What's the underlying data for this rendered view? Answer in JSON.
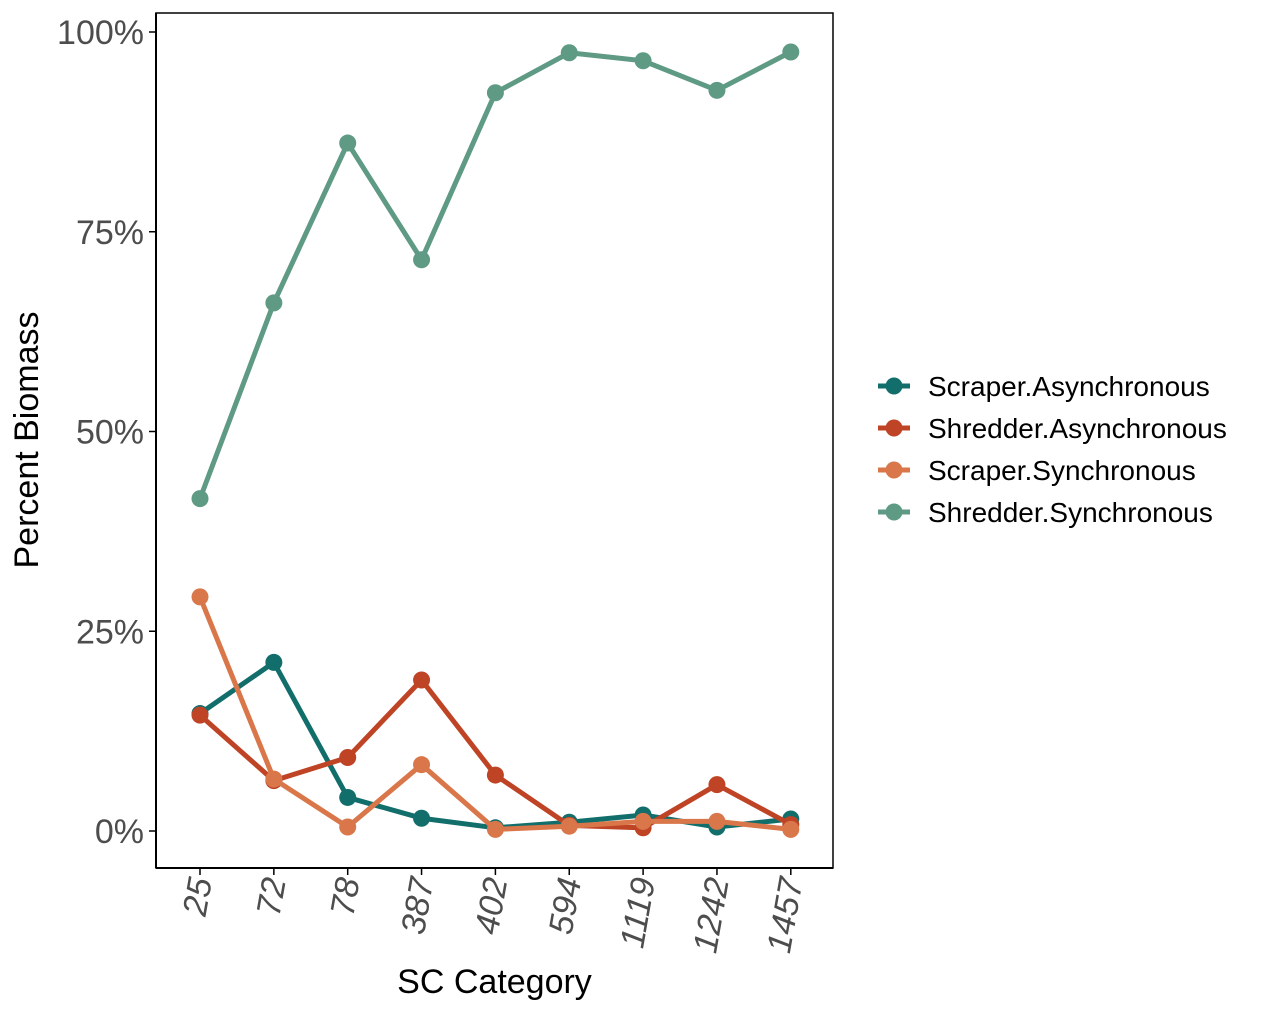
{
  "chart_data": {
    "type": "line",
    "categories": [
      "25",
      "72",
      "78",
      "387",
      "402",
      "594",
      "1119",
      "1242",
      "1457"
    ],
    "xlabel": "SC Category",
    "ylabel": "Percent Biomass",
    "ylim": [
      0,
      1
    ],
    "yticks": [
      {
        "value": 0,
        "label": "0%"
      },
      {
        "value": 0.25,
        "label": "25%"
      },
      {
        "value": 0.5,
        "label": "50%"
      },
      {
        "value": 0.75,
        "label": "75%"
      },
      {
        "value": 1,
        "label": "100%"
      }
    ],
    "grid": false,
    "legend_position": "right",
    "series": [
      {
        "name": "Scraper.Asynchronous",
        "color": "#126e6b",
        "values": [
          0.147,
          0.211,
          0.042,
          0.016,
          0.004,
          0.011,
          0.02,
          0.005,
          0.015
        ]
      },
      {
        "name": "Shredder.Asynchronous",
        "color": "#bf4426",
        "values": [
          0.145,
          0.063,
          0.092,
          0.189,
          0.07,
          0.007,
          0.004,
          0.058,
          0.008
        ]
      },
      {
        "name": "Scraper.Synchronous",
        "color": "#d9774a",
        "values": [
          0.293,
          0.065,
          0.005,
          0.083,
          0.002,
          0.006,
          0.012,
          0.012,
          0.002
        ]
      },
      {
        "name": "Shredder.Synchronous",
        "color": "#5e9a84",
        "values": [
          0.416,
          0.661,
          0.861,
          0.715,
          0.924,
          0.974,
          0.964,
          0.927,
          0.975
        ]
      }
    ]
  }
}
